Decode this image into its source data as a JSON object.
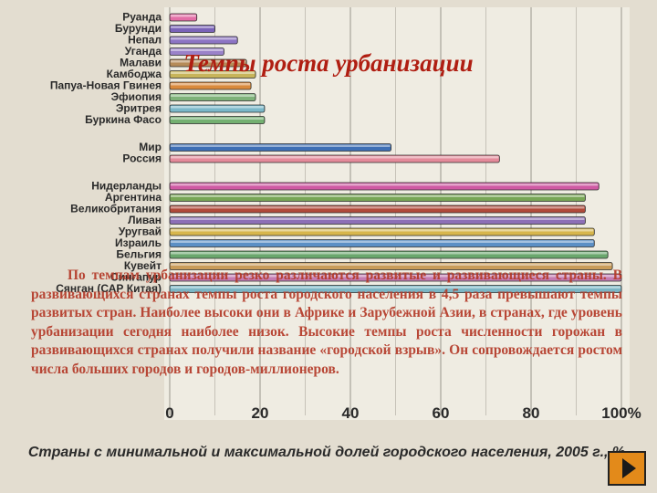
{
  "slide": {
    "title": "Темпы роста урбанизации",
    "text": "По темпам урбанизации резко различаются развитые и развивающиеся страны. В развивающихся странах темпы роста городского населения в 4,5 раза превышают темпы развитых стран. Наиболее высоки они в Африке и Зарубежной Азии, в странах, где уровень урбанизации сегодня наиболее низок. Высокие темпы роста численности горожан в развивающихся странах получили название «городской взрыв». Он сопровождается ростом числа больших городов и городов-миллионеров.",
    "next_icon": "play-triangle-icon"
  },
  "chart_data": {
    "type": "bar",
    "orientation": "horizontal",
    "title": "Страны с минимальной и максимальной долей городского населения, 2005 г., %",
    "xlim": [
      0,
      100
    ],
    "x_ticks": [
      "0",
      "20",
      "40",
      "60",
      "80",
      "100%"
    ],
    "grid": true,
    "categories": [
      "Руанда",
      "Бурунди",
      "Непал",
      "Уганда",
      "Малави",
      "Камбоджа",
      "Папуа-Новая Гвинея",
      "Эфиопия",
      "Эритрея",
      "Буркина Фасо",
      "Мир",
      "Россия",
      "Нидерланды",
      "Аргентина",
      "Великобритания",
      "Ливан",
      "Уругвай",
      "Израиль",
      "Бельгия",
      "Кувейт",
      "Сингапур",
      "Сянган (САР Китая)"
    ],
    "gap_after": [
      "Буркина Фасо",
      "Россия"
    ],
    "values": [
      6,
      10,
      15,
      12,
      17,
      19,
      18,
      19,
      21,
      21,
      49,
      73,
      95,
      92,
      92,
      92,
      94,
      94,
      97,
      98,
      100,
      100
    ],
    "colors": [
      "#e36fa7",
      "#7a63b8",
      "#8c74c4",
      "#9a82c9",
      "#b68b58",
      "#c7b45a",
      "#d98a3c",
      "#7fb27a",
      "#7bb8c9",
      "#74b071",
      "#3e6fb5",
      "#e48a9a",
      "#cf5aa3",
      "#78a656",
      "#b14a3a",
      "#8d6fb6",
      "#d7b64c",
      "#5b8fc5",
      "#6aa76d",
      "#c99c5a",
      "#c47cb2",
      "#7bb5c4"
    ]
  }
}
